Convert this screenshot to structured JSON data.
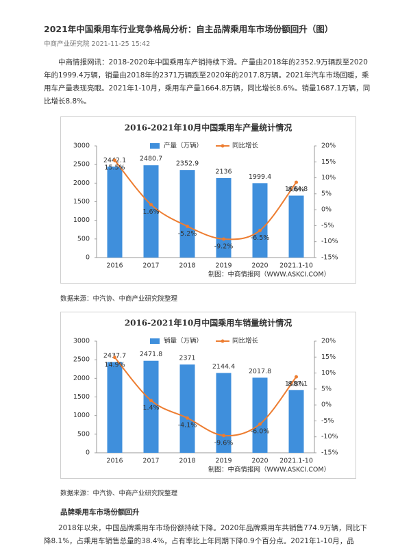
{
  "header": {
    "title": "2021年中国乘用车行业竞争格局分析：自主品牌乘用车市场份额回升（图）",
    "meta": "中商产业研究院 2021-11-25 15:42"
  },
  "body": {
    "paragraphs": [
      "中商情报网讯：2018-2020年中国乘用车产销持续下滑。产量由2018年的2352.9万辆跌至2020年的1999.4万辆，销量由2018年的2371万辆跌至2020年的2017.8万辆。2021年汽车市场回暖，乘用车产量表现亮眼。2021年1-10月，乘用车产量1664.8万辆，同比增长8.6%。销量1687.1万辆，同比增长8.8%。"
    ]
  },
  "chart_data": [
    {
      "type": "combo",
      "title": "2016-2021年10月中国乘用车产量统计情况",
      "credit": "制图：中商情报网（WWW.ASKCI.COM）",
      "source": "数据来源：中汽协、中商产业研究院整理",
      "categories": [
        "2016",
        "2017",
        "2018",
        "2019",
        "2020",
        "2021.1-10"
      ],
      "series": [
        {
          "name": "产量（万辆）",
          "type": "bar",
          "color": "#3f8fdc",
          "values": [
            2442.1,
            2480.7,
            2352.9,
            2136,
            1999.4,
            1664.8
          ]
        },
        {
          "name": "同比增长",
          "type": "line",
          "axis": "y2",
          "color": "#ed7d31",
          "values": [
            15.5,
            1.6,
            -5.2,
            -9.2,
            -6.5,
            8.6
          ],
          "value_labels": [
            "15.5%",
            "1.6%",
            "-5.2%",
            "-9.2%",
            "-6.5%",
            "8.6%"
          ]
        }
      ],
      "ylim": [
        0,
        3000
      ],
      "yticks": [
        0,
        500,
        1000,
        1500,
        2000,
        2500,
        3000
      ],
      "y2lim": [
        -15,
        20
      ],
      "y2ticks": [
        {
          "value": -15,
          "label": "-15%"
        },
        {
          "value": -10,
          "label": "-10%"
        },
        {
          "value": -5,
          "label": "-5%"
        },
        {
          "value": 0,
          "label": "0%"
        },
        {
          "value": 5,
          "label": "5%"
        },
        {
          "value": 10,
          "label": "10%"
        },
        {
          "value": 15,
          "label": "15%"
        },
        {
          "value": 20,
          "label": "20%"
        }
      ]
    },
    {
      "type": "combo",
      "title": "2016-2021年10月中国乘用车销量统计情况",
      "credit": "制图：中商情报网（WWW.ASKCI.COM）",
      "source": "数据来源：中汽协、中商产业研究院整理",
      "categories": [
        "2016",
        "2017",
        "2018",
        "2019",
        "2020",
        "2021.1-10"
      ],
      "series": [
        {
          "name": "销量（万辆）",
          "type": "bar",
          "color": "#3f8fdc",
          "values": [
            2437.7,
            2471.8,
            2371,
            2144.4,
            2017.8,
            1687.1
          ]
        },
        {
          "name": "同比增长",
          "type": "line",
          "axis": "y2",
          "color": "#ed7d31",
          "values": [
            14.9,
            1.4,
            -4.1,
            -9.6,
            -6.0,
            8.8
          ],
          "value_labels": [
            "14.9%",
            "1.4%",
            "-4.1%",
            "-9.6%",
            "-6.0%",
            "8.8%"
          ]
        }
      ],
      "ylim": [
        0,
        3000
      ],
      "yticks": [
        0,
        500,
        1000,
        1500,
        2000,
        2500,
        3000
      ],
      "y2lim": [
        -15,
        20
      ],
      "y2ticks": [
        {
          "value": -15,
          "label": "-15%"
        },
        {
          "value": -10,
          "label": "-10%"
        },
        {
          "value": -5,
          "label": "-5%"
        },
        {
          "value": 0,
          "label": "0%"
        },
        {
          "value": 5,
          "label": "5%"
        },
        {
          "value": 10,
          "label": "10%"
        },
        {
          "value": 15,
          "label": "15%"
        },
        {
          "value": 20,
          "label": "20%"
        }
      ]
    }
  ],
  "section": {
    "heading": "品牌乘用车市场份额回升",
    "paragraph": "2018年以来，中国品牌乘用车市场份额持续下降。2020年品牌乘用车共销售774.9万辆，同比下降8.1%，占乘用车销售总量的38.4%，占有率比上年同期下降0.9个百分点。2021年1-10月，品"
  }
}
